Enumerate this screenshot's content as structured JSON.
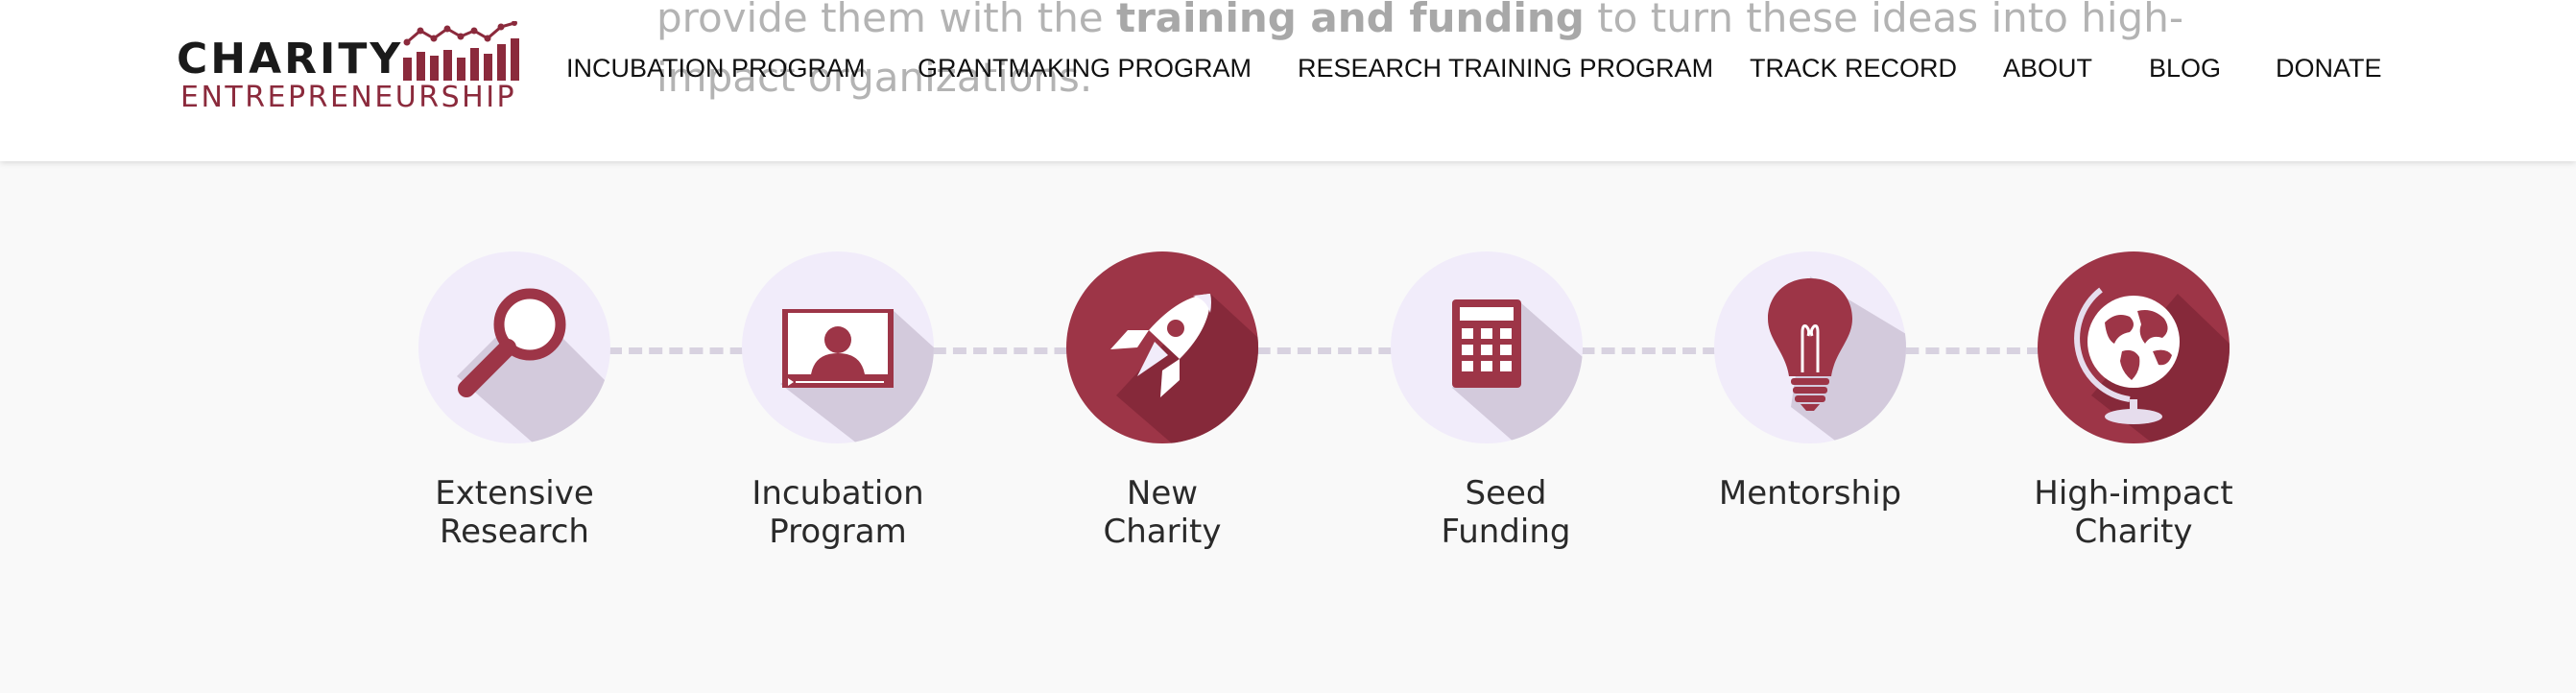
{
  "background_text": {
    "line1_before": "provide them with the ",
    "line1_bold": "training and funding",
    "line1_after": " to turn these ideas into high-",
    "line2": "impact organizations."
  },
  "logo": {
    "top": "CHARITY",
    "bottom": "ENTREPRENEURSHIP"
  },
  "nav": {
    "items": [
      "INCUBATION PROGRAM",
      "GRANTMAKING PROGRAM",
      "RESEARCH TRAINING PROGRAM",
      "TRACK RECORD",
      "ABOUT",
      "BLOG",
      "DONATE"
    ]
  },
  "steps": [
    {
      "label": "Extensive\nResearch",
      "icon": "magnifying-glass-icon",
      "style": "light"
    },
    {
      "label": "Incubation\nProgram",
      "icon": "video-presentation-icon",
      "style": "light"
    },
    {
      "label": "New\nCharity",
      "icon": "rocket-icon",
      "style": "dark"
    },
    {
      "label": "Seed\nFunding",
      "icon": "calculator-icon",
      "style": "light"
    },
    {
      "label": "Mentorship",
      "icon": "lightbulb-icon",
      "style": "light"
    },
    {
      "label": "High-impact\nCharity",
      "icon": "globe-icon",
      "style": "dark"
    }
  ],
  "colors": {
    "brand": "#8b2a3c",
    "icon_dark": "#9d3547",
    "circle_light": "#f1ecfa",
    "connector": "#d8d2e0"
  }
}
